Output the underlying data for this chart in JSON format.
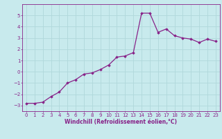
{
  "x": [
    0,
    1,
    2,
    3,
    4,
    5,
    6,
    7,
    8,
    9,
    10,
    11,
    12,
    13,
    14,
    15,
    16,
    17,
    18,
    19,
    20,
    21,
    22,
    23
  ],
  "y": [
    -2.8,
    -2.8,
    -2.7,
    -2.2,
    -1.8,
    -1.0,
    -0.7,
    -0.2,
    -0.1,
    0.2,
    0.6,
    1.3,
    1.4,
    1.7,
    5.2,
    5.2,
    3.5,
    3.8,
    3.2,
    3.0,
    2.9,
    2.6,
    2.9,
    2.7
  ],
  "line_color": "#882288",
  "marker": "D",
  "markersize": 1.8,
  "linewidth": 0.9,
  "xlabel": "Windchill (Refroidissement éolien,°C)",
  "xlabel_fontsize": 5.5,
  "xlim": [
    -0.5,
    23.5
  ],
  "ylim": [
    -3.5,
    6.0
  ],
  "yticks": [
    -3,
    -2,
    -1,
    0,
    1,
    2,
    3,
    4,
    5
  ],
  "xticks": [
    0,
    1,
    2,
    3,
    4,
    5,
    6,
    7,
    8,
    9,
    10,
    11,
    12,
    13,
    14,
    15,
    16,
    17,
    18,
    19,
    20,
    21,
    22,
    23
  ],
  "background_color": "#c8eaed",
  "grid_color": "#b0d8db",
  "tick_color": "#882288",
  "tick_fontsize": 5.0
}
